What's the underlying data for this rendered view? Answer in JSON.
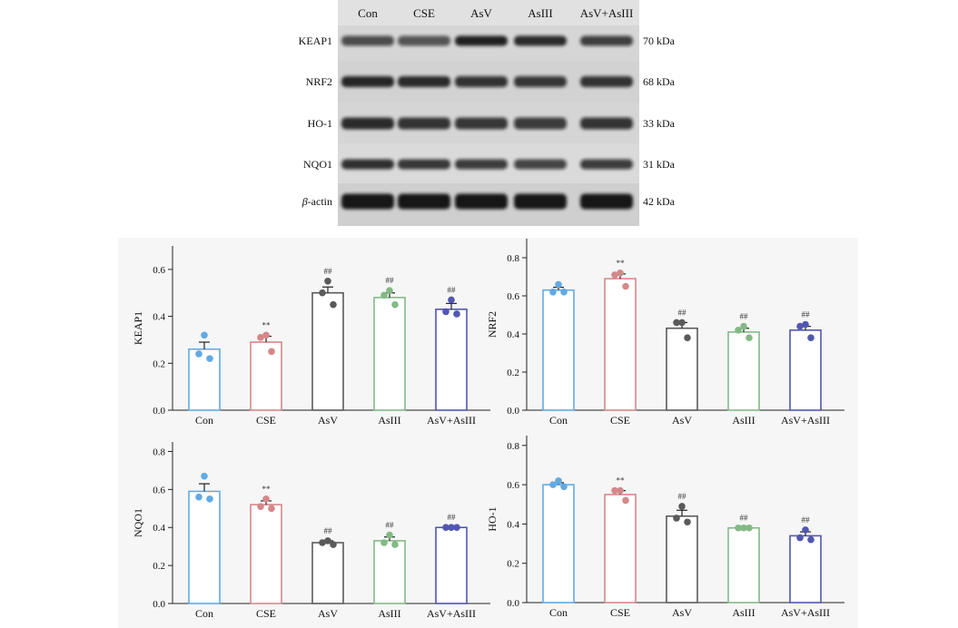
{
  "blot": {
    "lanes": [
      "Con",
      "CSE",
      "AsV",
      "AsIII",
      "AsV+AsIII"
    ],
    "rows": [
      {
        "protein": "KEAP1",
        "size": "70 kDa"
      },
      {
        "protein": "NRF2",
        "size": "68 kDa"
      },
      {
        "protein": "HO-1",
        "size": "33 kDa"
      },
      {
        "protein": "NQO1",
        "size": "31 kDa"
      },
      {
        "protein": "β-actin",
        "size": "42 kDa"
      }
    ]
  },
  "chart_data": [
    {
      "type": "bar",
      "ylabel": "KEAP1",
      "categories": [
        "Con",
        "CSE",
        "AsV",
        "AsIII",
        "AsV+AsIII"
      ],
      "values": [
        0.26,
        0.29,
        0.5,
        0.48,
        0.43
      ],
      "errors": [
        0.03,
        0.025,
        0.025,
        0.02,
        0.025
      ],
      "points": [
        [
          0.32,
          0.24,
          0.22
        ],
        [
          0.32,
          0.31,
          0.25
        ],
        [
          0.55,
          0.5,
          0.45
        ],
        [
          0.51,
          0.49,
          0.45
        ],
        [
          0.47,
          0.42,
          0.41
        ]
      ],
      "annotations": [
        "",
        "**",
        "##",
        "##",
        "##"
      ],
      "ylim": [
        0,
        0.7
      ],
      "yticks": [
        "0.0",
        "0.2",
        "0.4",
        "0.6"
      ],
      "colors": [
        "#62aae3",
        "#d4888a",
        "#5a5a5a",
        "#84b985",
        "#5157b0"
      ]
    },
    {
      "type": "bar",
      "ylabel": "NRF2",
      "categories": [
        "Con",
        "CSE",
        "AsV",
        "AsIII",
        "AsV+AsIII"
      ],
      "values": [
        0.63,
        0.69,
        0.43,
        0.41,
        0.42
      ],
      "errors": [
        0.015,
        0.025,
        0.03,
        0.02,
        0.02
      ],
      "points": [
        [
          0.66,
          0.62,
          0.62
        ],
        [
          0.72,
          0.71,
          0.65
        ],
        [
          0.46,
          0.46,
          0.38
        ],
        [
          0.44,
          0.42,
          0.38
        ],
        [
          0.45,
          0.44,
          0.38
        ]
      ],
      "annotations": [
        "",
        "**",
        "##",
        "##",
        "##"
      ],
      "ylim": [
        0,
        0.9
      ],
      "yticks": [
        "0.0",
        "0.2",
        "0.4",
        "0.6",
        "0.8"
      ],
      "colors": [
        "#62aae3",
        "#d4888a",
        "#5a5a5a",
        "#84b985",
        "#5157b0"
      ]
    },
    {
      "type": "bar",
      "ylabel": "NQO1",
      "categories": [
        "Con",
        "CSE",
        "AsV",
        "AsIII",
        "AsV+AsIII"
      ],
      "values": [
        0.59,
        0.52,
        0.32,
        0.33,
        0.4
      ],
      "errors": [
        0.04,
        0.02,
        0.01,
        0.02,
        0.005
      ],
      "points": [
        [
          0.67,
          0.56,
          0.55
        ],
        [
          0.55,
          0.51,
          0.5
        ],
        [
          0.33,
          0.32,
          0.31
        ],
        [
          0.36,
          0.32,
          0.31
        ],
        [
          0.4,
          0.4,
          0.4
        ]
      ],
      "annotations": [
        "",
        "**",
        "##",
        "##",
        "##"
      ],
      "ylim": [
        0,
        0.85
      ],
      "yticks": [
        "0.0",
        "0.2",
        "0.4",
        "0.6",
        "0.8"
      ],
      "colors": [
        "#62aae3",
        "#d4888a",
        "#5a5a5a",
        "#84b985",
        "#5157b0"
      ]
    },
    {
      "type": "bar",
      "ylabel": "HO-1",
      "categories": [
        "Con",
        "CSE",
        "AsV",
        "AsIII",
        "AsV+AsIII"
      ],
      "values": [
        0.6,
        0.55,
        0.44,
        0.38,
        0.34
      ],
      "errors": [
        0.01,
        0.02,
        0.03,
        0.005,
        0.02
      ],
      "points": [
        [
          0.62,
          0.6,
          0.59
        ],
        [
          0.57,
          0.57,
          0.52
        ],
        [
          0.49,
          0.43,
          0.41
        ],
        [
          0.38,
          0.38,
          0.38
        ],
        [
          0.37,
          0.33,
          0.32
        ]
      ],
      "annotations": [
        "",
        "**",
        "##",
        "##",
        "##"
      ],
      "ylim": [
        0,
        0.85
      ],
      "yticks": [
        "0.0",
        "0.2",
        "0.4",
        "0.6",
        "0.8"
      ],
      "colors": [
        "#62aae3",
        "#d4888a",
        "#5a5a5a",
        "#84b985",
        "#5157b0"
      ]
    }
  ]
}
